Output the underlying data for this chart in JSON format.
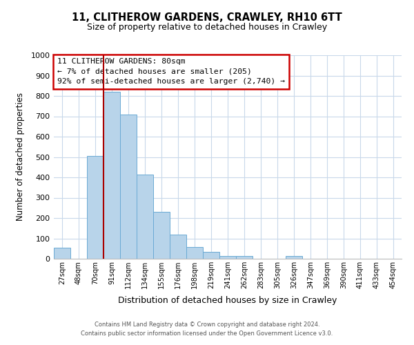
{
  "title": "11, CLITHEROW GARDENS, CRAWLEY, RH10 6TT",
  "subtitle": "Size of property relative to detached houses in Crawley",
  "xlabel": "Distribution of detached houses by size in Crawley",
  "ylabel": "Number of detached properties",
  "bar_labels": [
    "27sqm",
    "48sqm",
    "70sqm",
    "91sqm",
    "112sqm",
    "134sqm",
    "155sqm",
    "176sqm",
    "198sqm",
    "219sqm",
    "241sqm",
    "262sqm",
    "283sqm",
    "305sqm",
    "326sqm",
    "347sqm",
    "369sqm",
    "390sqm",
    "411sqm",
    "433sqm",
    "454sqm"
  ],
  "bar_values": [
    55,
    0,
    505,
    820,
    710,
    415,
    230,
    118,
    57,
    35,
    12,
    12,
    0,
    0,
    12,
    0,
    0,
    0,
    0,
    0,
    0
  ],
  "bar_color": "#b8d4ea",
  "bar_edge_color": "#6aaad4",
  "vline_color": "#aa0000",
  "annotation_title": "11 CLITHEROW GARDENS: 80sqm",
  "annotation_line1": "← 7% of detached houses are smaller (205)",
  "annotation_line2": "92% of semi-detached houses are larger (2,740) →",
  "annotation_box_color": "#ffffff",
  "annotation_box_edge": "#cc0000",
  "ylim": [
    0,
    1000
  ],
  "yticks": [
    0,
    100,
    200,
    300,
    400,
    500,
    600,
    700,
    800,
    900,
    1000
  ],
  "footer_line1": "Contains HM Land Registry data © Crown copyright and database right 2024.",
  "footer_line2": "Contains public sector information licensed under the Open Government Licence v3.0.",
  "background_color": "#ffffff",
  "grid_color": "#c8d8ea"
}
